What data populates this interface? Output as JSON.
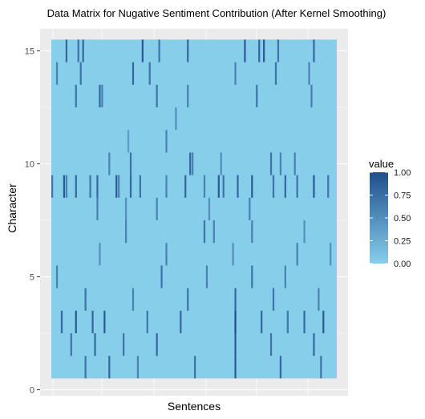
{
  "chart_data": {
    "type": "heatmap",
    "title": "Data Matrix for Nugative Sentiment Contribution (After Kernel Smoothing)",
    "xlabel": "Sentences",
    "ylabel": "Character",
    "ylim": [
      0,
      15.5
    ],
    "yticks": [
      0,
      5,
      10,
      15
    ],
    "x_ticks_labeled": false,
    "grid": true,
    "rows": 15,
    "columns": 120,
    "legend": {
      "title": "value",
      "placement": "right",
      "range": [
        0,
        1
      ],
      "ticks": [
        "1.00",
        "0.75",
        "0.50",
        "0.25",
        "0.00"
      ],
      "low_color": "#87CEEB",
      "high_color": "#1F4E8C"
    },
    "colors": {
      "panel": "#EBEBEB",
      "grid": "#FFFFFF",
      "background": "#FFFFFF"
    },
    "nonzero_cells": [
      {
        "row": 15,
        "col": 6,
        "value": 0.8
      },
      {
        "row": 15,
        "col": 11,
        "value": 0.7
      },
      {
        "row": 15,
        "col": 13,
        "value": 0.8
      },
      {
        "row": 15,
        "col": 38,
        "value": 0.9
      },
      {
        "row": 15,
        "col": 45,
        "value": 0.7
      },
      {
        "row": 15,
        "col": 57,
        "value": 0.8
      },
      {
        "row": 15,
        "col": 81,
        "value": 0.9
      },
      {
        "row": 15,
        "col": 87,
        "value": 0.8
      },
      {
        "row": 15,
        "col": 89,
        "value": 0.9
      },
      {
        "row": 15,
        "col": 95,
        "value": 0.7
      },
      {
        "row": 15,
        "col": 110,
        "value": 0.8
      },
      {
        "row": 14,
        "col": 2,
        "value": 0.6
      },
      {
        "row": 14,
        "col": 12,
        "value": 0.7
      },
      {
        "row": 14,
        "col": 34,
        "value": 0.8
      },
      {
        "row": 14,
        "col": 41,
        "value": 0.7
      },
      {
        "row": 14,
        "col": 77,
        "value": 0.6
      },
      {
        "row": 14,
        "col": 94,
        "value": 0.7
      },
      {
        "row": 14,
        "col": 108,
        "value": 0.6
      },
      {
        "row": 13,
        "col": 10,
        "value": 0.7
      },
      {
        "row": 13,
        "col": 20,
        "value": 0.8
      },
      {
        "row": 13,
        "col": 21,
        "value": 0.6
      },
      {
        "row": 13,
        "col": 44,
        "value": 0.7
      },
      {
        "row": 13,
        "col": 57,
        "value": 0.6
      },
      {
        "row": 13,
        "col": 86,
        "value": 0.7
      },
      {
        "row": 13,
        "col": 109,
        "value": 0.6
      },
      {
        "row": 12,
        "col": 52,
        "value": 0.5
      },
      {
        "row": 11,
        "col": 48,
        "value": 0.6
      },
      {
        "row": 11,
        "col": 32,
        "value": 0.4
      },
      {
        "row": 10,
        "col": 24,
        "value": 0.6
      },
      {
        "row": 10,
        "col": 33,
        "value": 0.7
      },
      {
        "row": 10,
        "col": 58,
        "value": 0.8
      },
      {
        "row": 10,
        "col": 59,
        "value": 0.6
      },
      {
        "row": 10,
        "col": 71,
        "value": 0.5
      },
      {
        "row": 10,
        "col": 92,
        "value": 0.7
      },
      {
        "row": 10,
        "col": 96,
        "value": 0.6
      },
      {
        "row": 10,
        "col": 102,
        "value": 0.6
      },
      {
        "row": 9,
        "col": 0,
        "value": 0.7
      },
      {
        "row": 9,
        "col": 5,
        "value": 0.9
      },
      {
        "row": 9,
        "col": 6,
        "value": 0.6
      },
      {
        "row": 9,
        "col": 10,
        "value": 0.8
      },
      {
        "row": 9,
        "col": 16,
        "value": 0.7
      },
      {
        "row": 9,
        "col": 19,
        "value": 0.8
      },
      {
        "row": 9,
        "col": 27,
        "value": 0.9
      },
      {
        "row": 9,
        "col": 28,
        "value": 0.6
      },
      {
        "row": 9,
        "col": 33,
        "value": 0.8
      },
      {
        "row": 9,
        "col": 37,
        "value": 0.7
      },
      {
        "row": 9,
        "col": 48,
        "value": 0.6
      },
      {
        "row": 9,
        "col": 56,
        "value": 0.8
      },
      {
        "row": 9,
        "col": 64,
        "value": 0.6
      },
      {
        "row": 9,
        "col": 70,
        "value": 0.9
      },
      {
        "row": 9,
        "col": 72,
        "value": 0.7
      },
      {
        "row": 9,
        "col": 78,
        "value": 0.8
      },
      {
        "row": 9,
        "col": 84,
        "value": 0.9
      },
      {
        "row": 9,
        "col": 93,
        "value": 0.7
      },
      {
        "row": 9,
        "col": 98,
        "value": 0.8
      },
      {
        "row": 9,
        "col": 103,
        "value": 0.7
      },
      {
        "row": 9,
        "col": 110,
        "value": 0.9
      },
      {
        "row": 9,
        "col": 116,
        "value": 0.7
      },
      {
        "row": 8,
        "col": 19,
        "value": 0.6
      },
      {
        "row": 8,
        "col": 31,
        "value": 0.5
      },
      {
        "row": 8,
        "col": 44,
        "value": 0.6
      },
      {
        "row": 8,
        "col": 66,
        "value": 0.5
      },
      {
        "row": 8,
        "col": 83,
        "value": 0.6
      },
      {
        "row": 7,
        "col": 31,
        "value": 0.6
      },
      {
        "row": 7,
        "col": 64,
        "value": 0.7
      },
      {
        "row": 7,
        "col": 68,
        "value": 0.6
      },
      {
        "row": 7,
        "col": 84,
        "value": 0.6
      },
      {
        "row": 7,
        "col": 106,
        "value": 0.5
      },
      {
        "row": 6,
        "col": 20,
        "value": 0.5
      },
      {
        "row": 6,
        "col": 48,
        "value": 0.6
      },
      {
        "row": 6,
        "col": 76,
        "value": 0.5
      },
      {
        "row": 6,
        "col": 103,
        "value": 0.6
      },
      {
        "row": 6,
        "col": 117,
        "value": 0.5
      },
      {
        "row": 5,
        "col": 2,
        "value": 0.6
      },
      {
        "row": 5,
        "col": 46,
        "value": 0.7
      },
      {
        "row": 5,
        "col": 65,
        "value": 0.6
      },
      {
        "row": 5,
        "col": 84,
        "value": 0.7
      },
      {
        "row": 5,
        "col": 98,
        "value": 0.6
      },
      {
        "row": 4,
        "col": 14,
        "value": 0.7
      },
      {
        "row": 4,
        "col": 34,
        "value": 0.6
      },
      {
        "row": 4,
        "col": 57,
        "value": 0.7
      },
      {
        "row": 4,
        "col": 77,
        "value": 0.8
      },
      {
        "row": 4,
        "col": 93,
        "value": 0.7
      },
      {
        "row": 4,
        "col": 112,
        "value": 0.6
      },
      {
        "row": 3,
        "col": 4,
        "value": 0.8
      },
      {
        "row": 3,
        "col": 10,
        "value": 0.9
      },
      {
        "row": 3,
        "col": 17,
        "value": 0.8
      },
      {
        "row": 3,
        "col": 22,
        "value": 0.9
      },
      {
        "row": 3,
        "col": 40,
        "value": 0.7
      },
      {
        "row": 3,
        "col": 54,
        "value": 0.8
      },
      {
        "row": 3,
        "col": 77,
        "value": 1.0
      },
      {
        "row": 3,
        "col": 88,
        "value": 0.8
      },
      {
        "row": 3,
        "col": 99,
        "value": 0.7
      },
      {
        "row": 3,
        "col": 106,
        "value": 0.8
      },
      {
        "row": 3,
        "col": 114,
        "value": 0.9
      },
      {
        "row": 2,
        "col": 8,
        "value": 0.7
      },
      {
        "row": 2,
        "col": 18,
        "value": 0.8
      },
      {
        "row": 2,
        "col": 30,
        "value": 0.7
      },
      {
        "row": 2,
        "col": 44,
        "value": 0.8
      },
      {
        "row": 2,
        "col": 77,
        "value": 0.9
      },
      {
        "row": 2,
        "col": 92,
        "value": 0.7
      },
      {
        "row": 2,
        "col": 110,
        "value": 0.8
      },
      {
        "row": 1,
        "col": 14,
        "value": 0.7
      },
      {
        "row": 1,
        "col": 24,
        "value": 0.8
      },
      {
        "row": 1,
        "col": 36,
        "value": 0.6
      },
      {
        "row": 1,
        "col": 60,
        "value": 0.7
      },
      {
        "row": 1,
        "col": 77,
        "value": 0.9
      },
      {
        "row": 1,
        "col": 96,
        "value": 0.8
      },
      {
        "row": 1,
        "col": 113,
        "value": 0.7
      }
    ]
  }
}
